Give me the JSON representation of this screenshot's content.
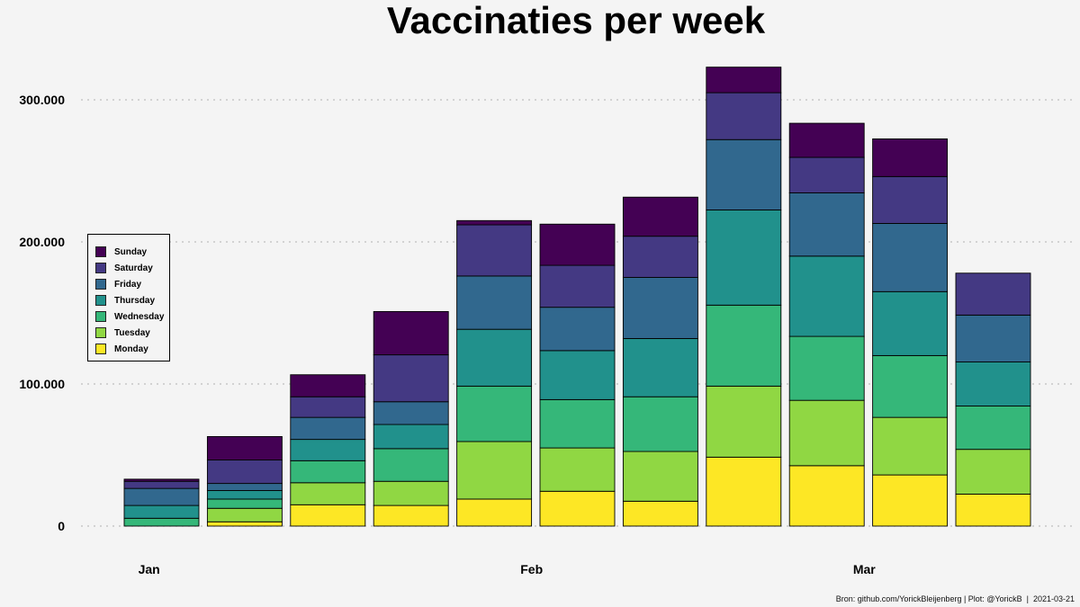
{
  "chart_data": {
    "type": "bar",
    "stacked": true,
    "title": "Vaccinaties per week",
    "xlabel": "",
    "ylabel": "",
    "ylim": [
      0,
      330000
    ],
    "y_ticks": [
      0,
      100000,
      200000,
      300000
    ],
    "y_tick_labels": [
      "0",
      "100.000",
      "200.000",
      "300.000"
    ],
    "x_tick_labels": [
      {
        "label": "Jan",
        "at_bar": -0.15
      },
      {
        "label": "Feb",
        "at_bar": 4.45
      },
      {
        "label": "Mar",
        "at_bar": 8.45
      }
    ],
    "grid": "horizontal-dotted",
    "legend_position": "left",
    "series": [
      {
        "name": "Monday",
        "color": "#fde725",
        "values": [
          0,
          3000,
          15000,
          14500,
          19000,
          24500,
          17500,
          48500,
          42500,
          36000,
          22500
        ]
      },
      {
        "name": "Tuesday",
        "color": "#90d743",
        "values": [
          0,
          9500,
          15500,
          17000,
          40500,
          30500,
          35000,
          50000,
          46000,
          40500,
          31500
        ]
      },
      {
        "name": "Wednesday",
        "color": "#35b779",
        "values": [
          5500,
          6500,
          15500,
          23000,
          39000,
          34000,
          38500,
          57000,
          45000,
          43500,
          30500
        ]
      },
      {
        "name": "Thursday",
        "color": "#21918c",
        "values": [
          9000,
          6000,
          15000,
          17000,
          40000,
          34500,
          41000,
          67000,
          56500,
          45000,
          31000
        ]
      },
      {
        "name": "Friday",
        "color": "#31688e",
        "values": [
          12000,
          5000,
          15500,
          16000,
          37500,
          30500,
          43000,
          49500,
          44500,
          48000,
          33000
        ]
      },
      {
        "name": "Saturday",
        "color": "#443983",
        "values": [
          5000,
          16500,
          14500,
          33000,
          36000,
          29500,
          29000,
          33000,
          25000,
          33000,
          29500
        ]
      },
      {
        "name": "Sunday",
        "color": "#440154",
        "values": [
          1500,
          16500,
          15500,
          30500,
          3000,
          29000,
          27500,
          18000,
          24000,
          26500,
          0
        ]
      }
    ]
  },
  "legend_order": [
    "Sunday",
    "Saturday",
    "Friday",
    "Thursday",
    "Wednesday",
    "Tuesday",
    "Monday"
  ],
  "caption": "Bron: github.com/YorickBleijenberg | Plot: @YorickB  |  2021-03-21"
}
